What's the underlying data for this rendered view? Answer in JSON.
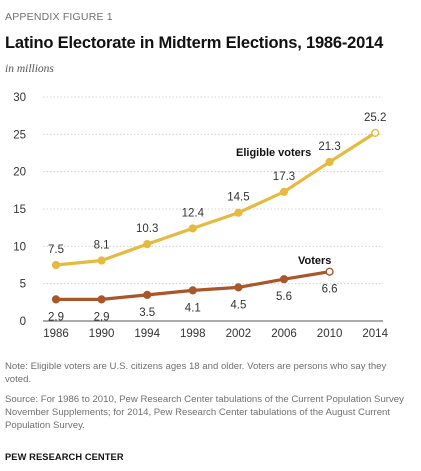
{
  "header": {
    "appendix_label": "APPENDIX FIGURE 1",
    "title": "Latino Electorate in Midterm Elections, 1986-2014",
    "units": "in millions"
  },
  "chart_data": {
    "type": "line",
    "title": "Latino Electorate in Midterm Elections, 1986-2014",
    "subtitle": "in millions",
    "xlabel": "",
    "ylabel": "",
    "x": [
      "1986",
      "1990",
      "1994",
      "1998",
      "2002",
      "2006",
      "2010",
      "2014"
    ],
    "ylim": [
      0,
      30
    ],
    "yticks": [
      "0",
      "5",
      "10",
      "15",
      "20",
      "25",
      "30"
    ],
    "grid": true,
    "series": [
      {
        "name": "Eligible voters",
        "values": [
          7.5,
          8.1,
          10.3,
          12.4,
          14.5,
          17.3,
          21.3,
          25.2
        ],
        "labels": [
          "7.5",
          "8.1",
          "10.3",
          "12.4",
          "14.5",
          "17.3",
          "21.3",
          "25.2"
        ],
        "color": "#e6b93f"
      },
      {
        "name": "Voters",
        "values": [
          2.9,
          2.9,
          3.5,
          4.1,
          4.5,
          5.6,
          6.6,
          null
        ],
        "labels": [
          "2.9",
          "2.9",
          "3.5",
          "4.1",
          "4.5",
          "5.6",
          "6.6",
          null
        ],
        "color": "#a8562a"
      }
    ]
  },
  "footer": {
    "note": "Note: Eligible voters are U.S. citizens ages 18 and older. Voters are persons who say they voted.",
    "source": "Source: For 1986 to 2010, Pew Research Center tabulations of the Current Population Survey November Supplements; for 2014, Pew Research Center tabulations of the August Current Population Survey.",
    "brand": "PEW RESEARCH CENTER"
  }
}
